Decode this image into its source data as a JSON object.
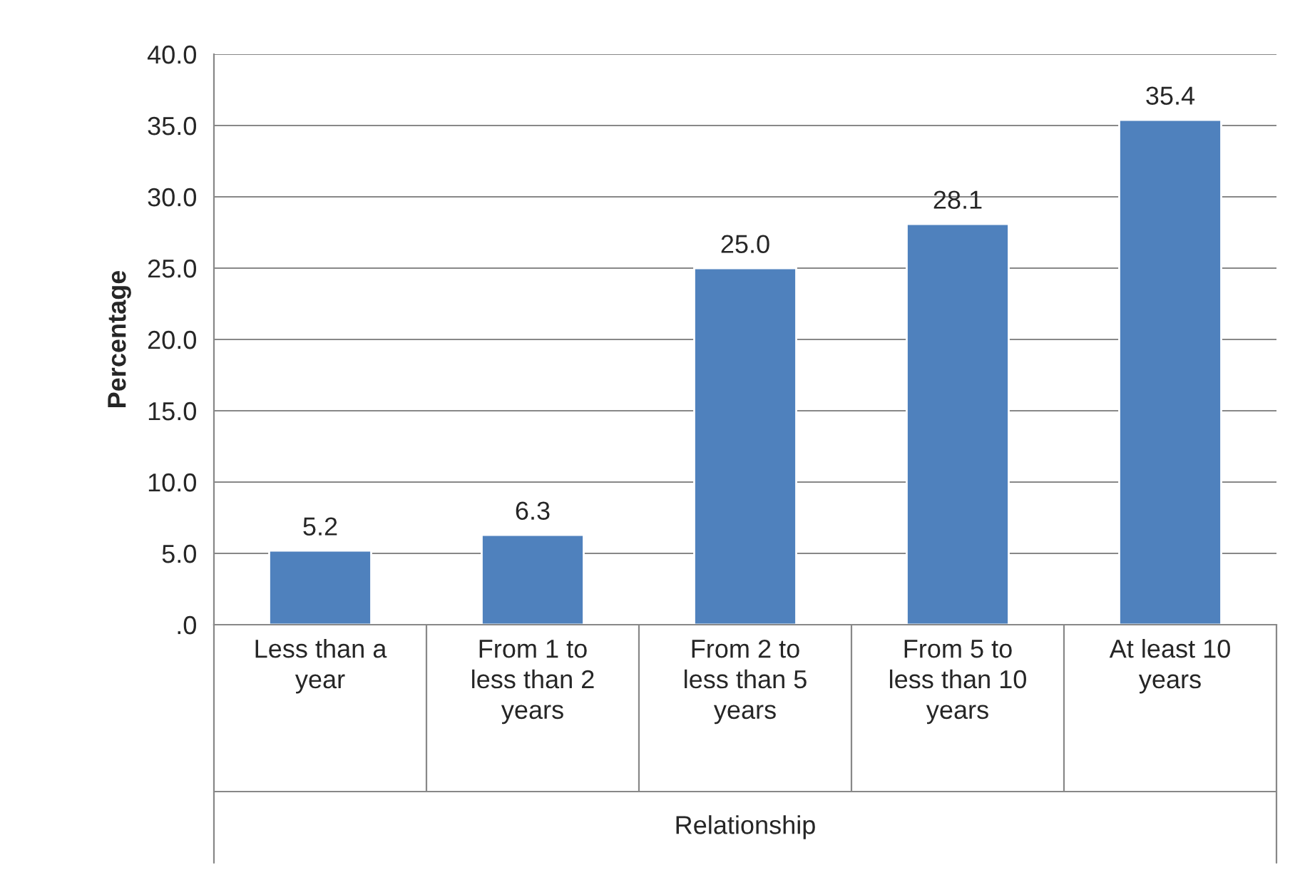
{
  "chart_data": {
    "type": "bar",
    "ylabel": "Percentage",
    "xlabel": "Relationship",
    "categories": [
      "Less than a year",
      "From 1 to less than 2 years",
      "From 2 to less than 5 years",
      "From 5 to less than 10 years",
      "At least 10 years"
    ],
    "values": [
      5.2,
      6.3,
      25.0,
      28.1,
      35.4
    ],
    "color": "#4f81bd",
    "ylim": [
      0,
      40
    ],
    "yticks": [
      {
        "value": 0,
        "label": ".0"
      },
      {
        "value": 5,
        "label": "5.0"
      },
      {
        "value": 10,
        "label": "10.0"
      },
      {
        "value": 15,
        "label": "15.0"
      },
      {
        "value": 20,
        "label": "20.0"
      },
      {
        "value": 25,
        "label": "25.0"
      },
      {
        "value": 30,
        "label": "30.0"
      },
      {
        "value": 35,
        "label": "35.0"
      },
      {
        "value": 40,
        "label": "40.0"
      }
    ],
    "value_labels": [
      "5.2",
      "6.3",
      "25.0",
      "28.1",
      "35.4"
    ],
    "grid": "y"
  }
}
